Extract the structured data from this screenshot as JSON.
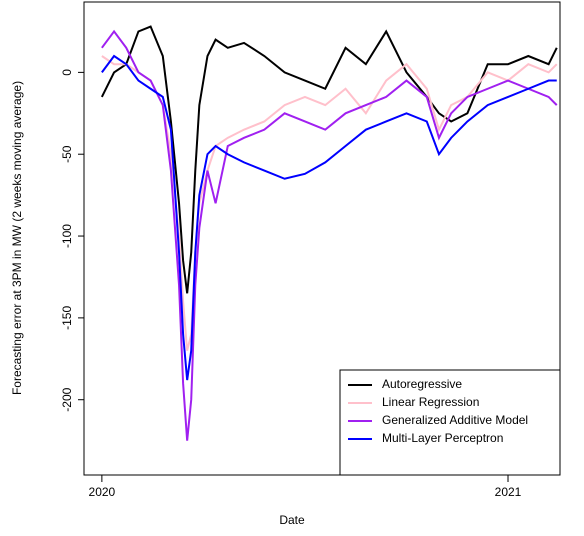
{
  "chart_data": {
    "type": "line",
    "x_label": "Date",
    "y_label": "Forecasting error at 3PM in MW (2 weeks moving average)",
    "x": [
      2020.0,
      2020.03,
      2020.06,
      2020.09,
      2020.12,
      2020.15,
      2020.17,
      2020.19,
      2020.2,
      2020.21,
      2020.22,
      2020.23,
      2020.24,
      2020.26,
      2020.28,
      2020.31,
      2020.35,
      2020.4,
      2020.45,
      2020.5,
      2020.55,
      2020.6,
      2020.65,
      2020.7,
      2020.75,
      2020.8,
      2020.83,
      2020.86,
      2020.9,
      2020.95,
      2021.0,
      2021.05,
      2021.1,
      2021.12
    ],
    "series": [
      {
        "name": "Autoregressive",
        "color": "#000000",
        "values": [
          -15,
          0,
          5,
          25,
          28,
          10,
          -30,
          -80,
          -115,
          -135,
          -110,
          -60,
          -20,
          10,
          20,
          15,
          18,
          10,
          0,
          -5,
          -10,
          15,
          5,
          25,
          0,
          -15,
          -25,
          -30,
          -25,
          5,
          5,
          10,
          5,
          15
        ]
      },
      {
        "name": "Linear Regression",
        "color": "#ffc0cb",
        "values": [
          10,
          5,
          5,
          0,
          -5,
          -20,
          -50,
          -100,
          -140,
          -170,
          -160,
          -110,
          -80,
          -60,
          -45,
          -40,
          -35,
          -30,
          -20,
          -15,
          -20,
          -10,
          -25,
          -5,
          5,
          -10,
          -35,
          -20,
          -15,
          0,
          -5,
          5,
          0,
          5
        ]
      },
      {
        "name": "Generalized Additive Model",
        "color": "#a020f0",
        "values": [
          15,
          25,
          15,
          0,
          -5,
          -20,
          -60,
          -130,
          -190,
          -225,
          -200,
          -130,
          -95,
          -60,
          -80,
          -45,
          -40,
          -35,
          -25,
          -30,
          -35,
          -25,
          -20,
          -15,
          -5,
          -15,
          -40,
          -25,
          -15,
          -10,
          -5,
          -10,
          -15,
          -20
        ]
      },
      {
        "name": "Multi-Layer Perceptron",
        "color": "#0000ff",
        "values": [
          0,
          10,
          5,
          -5,
          -10,
          -15,
          -35,
          -110,
          -160,
          -188,
          -170,
          -110,
          -75,
          -50,
          -45,
          -50,
          -55,
          -60,
          -65,
          -62,
          -55,
          -45,
          -35,
          -30,
          -25,
          -30,
          -50,
          -40,
          -30,
          -20,
          -15,
          -10,
          -5,
          -5
        ]
      }
    ],
    "xlim": [
      2019.956,
      2021.128
    ],
    "xticks": [
      2020,
      2021
    ],
    "ylim": [
      -246,
      43
    ],
    "yticks": [
      -200,
      -150,
      -100,
      -50,
      0
    ],
    "legend": "bottomright"
  }
}
